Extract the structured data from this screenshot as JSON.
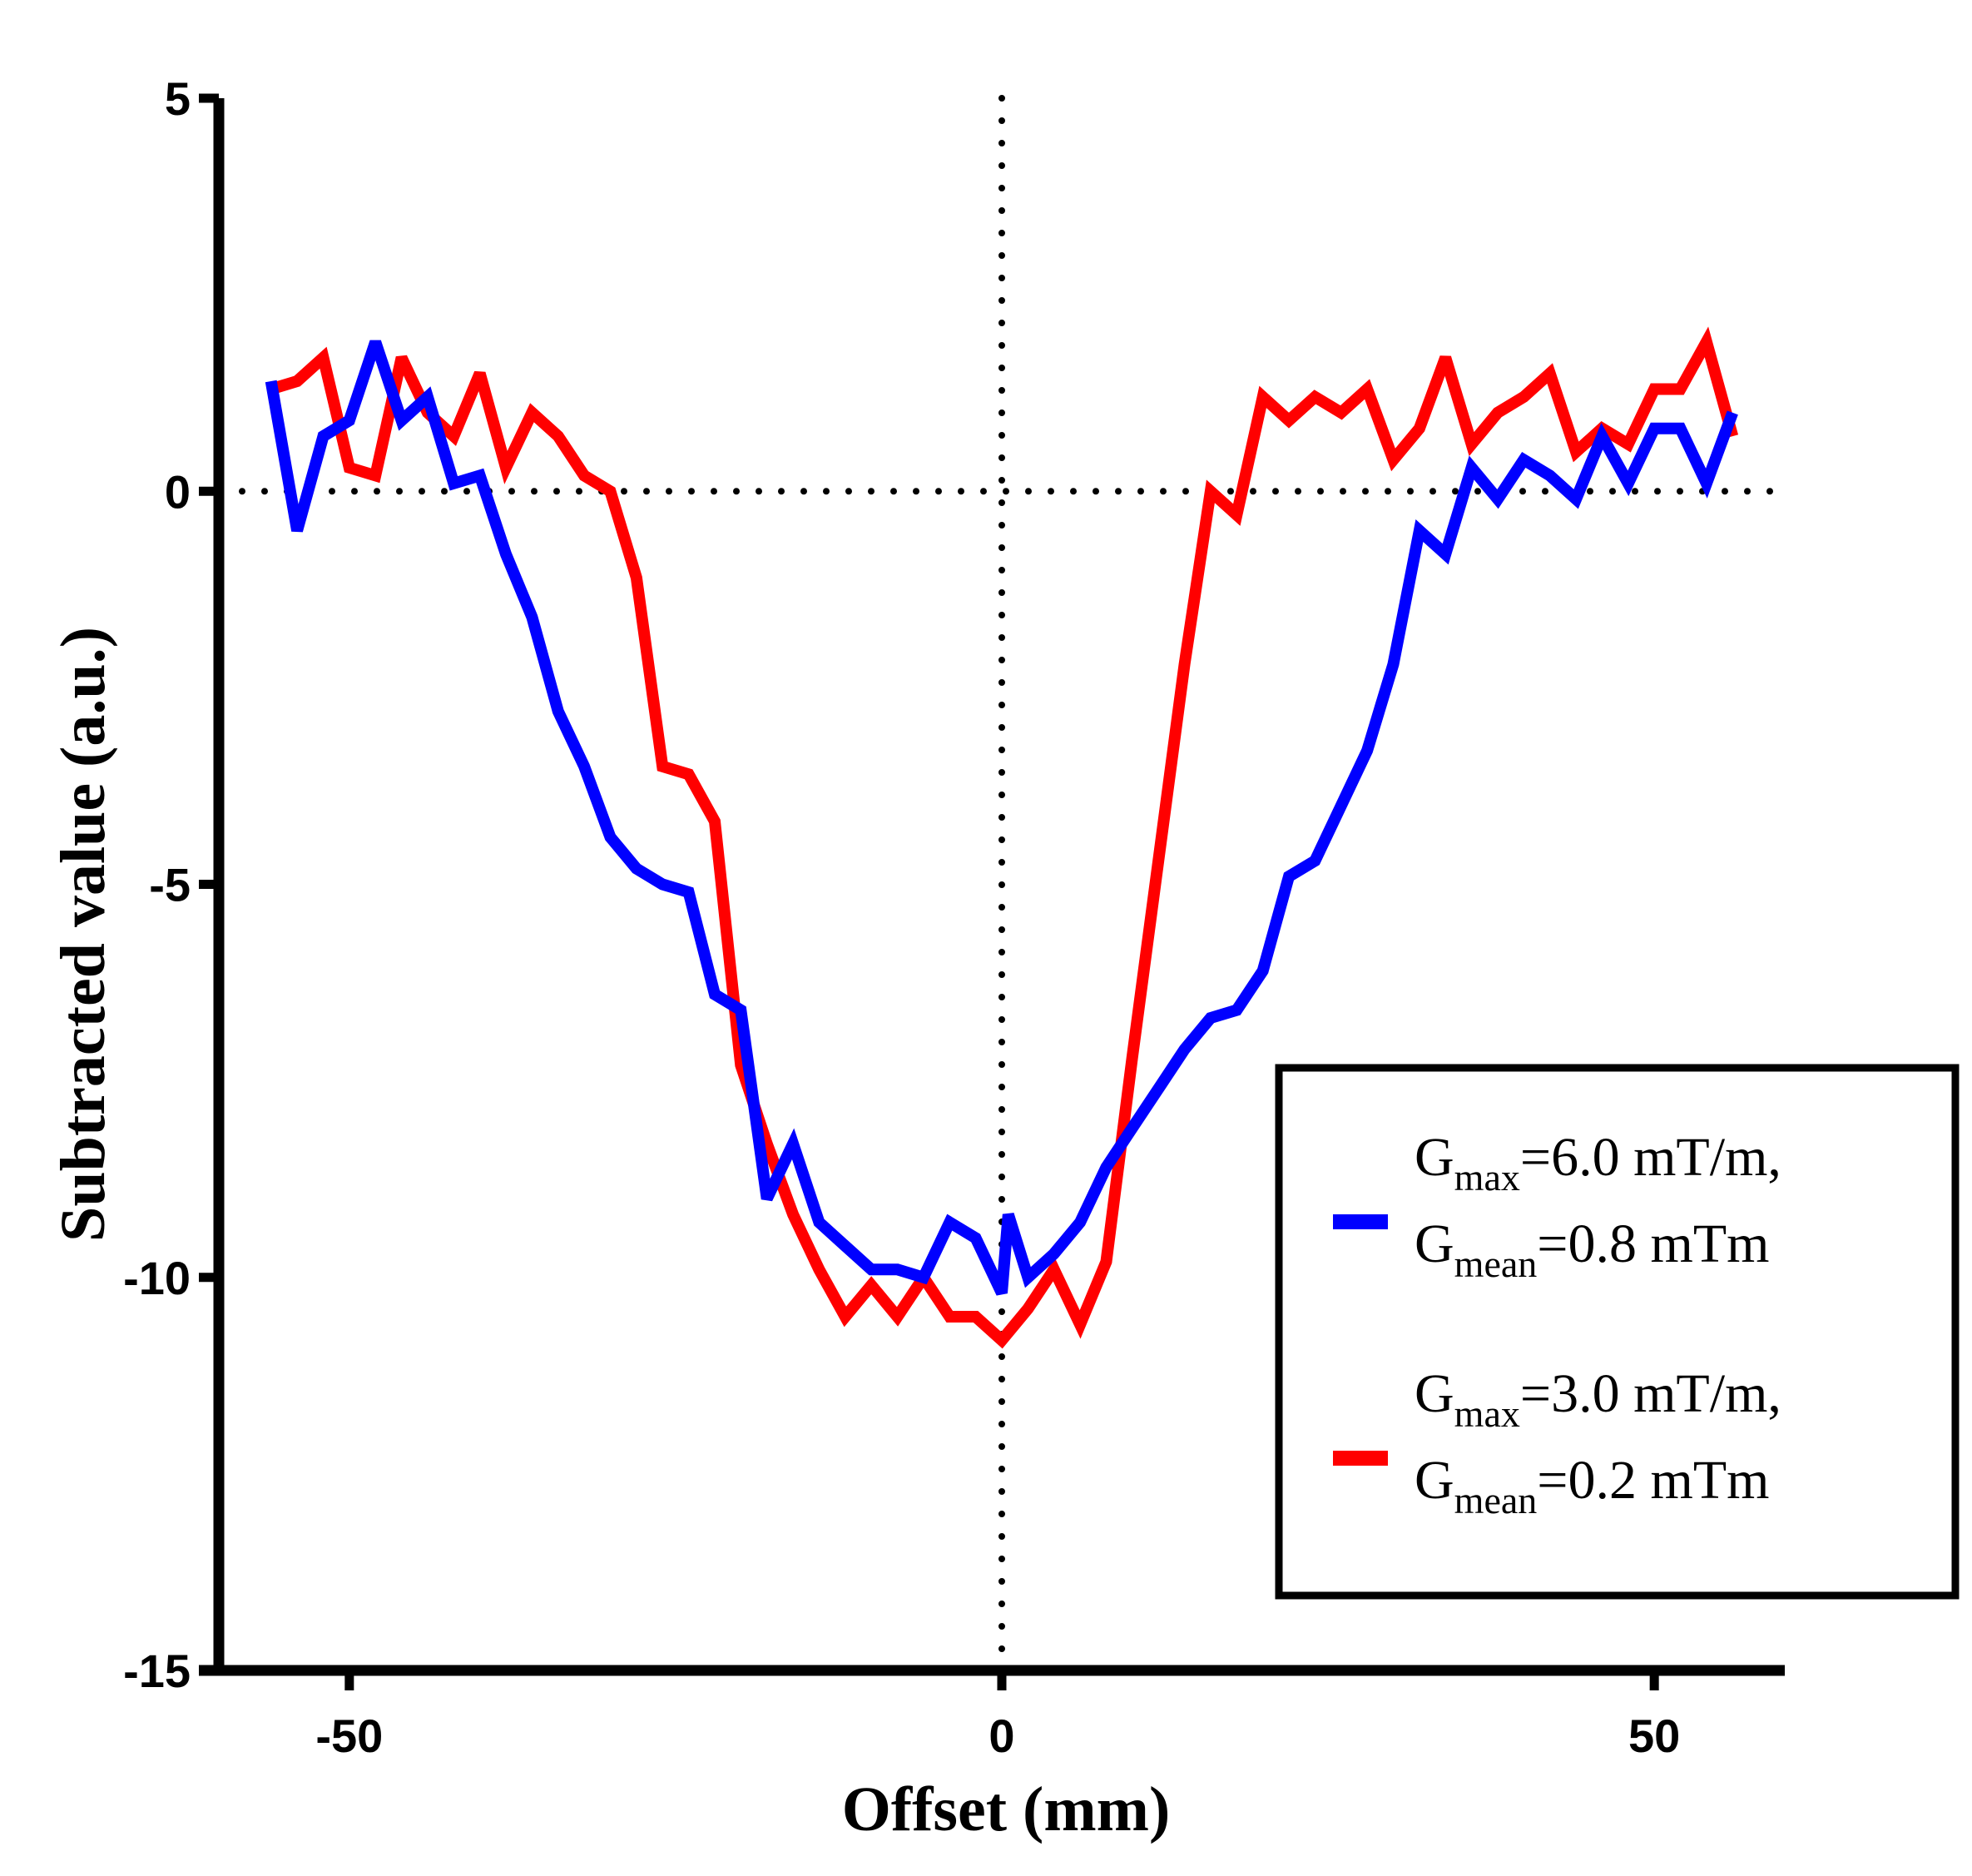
{
  "chart_data": {
    "type": "line",
    "title": "",
    "xlabel": "Offset (mm)",
    "ylabel": "Subtracted value (a.u.)",
    "xlim": [
      -60,
      60
    ],
    "ylim": [
      -15,
      5
    ],
    "xticks": [
      -50,
      0,
      50
    ],
    "xtick_labels": [
      "-50",
      "0",
      "50"
    ],
    "yticks": [
      5,
      0,
      -5,
      -10,
      -15
    ],
    "ytick_labels": [
      "5",
      "0",
      "-5",
      "-10",
      "-15"
    ],
    "reference_lines": [
      {
        "axis": "y",
        "value": 0,
        "style": "dotted"
      },
      {
        "axis": "x",
        "value": 0,
        "style": "dotted"
      }
    ],
    "grid": false,
    "legend_position": "bottom-right",
    "series": [
      {
        "name": "Gmax=6.0 mT/m, Gmean=0.8 mTm",
        "legend": {
          "line1_base": "G",
          "line1_sub": "max",
          "line1_rest": "=6.0 mT/m,",
          "line2_base": "G",
          "line2_sub": "mean",
          "line2_rest": "=0.8 mTm"
        },
        "color": "#0000ff",
        "points": [
          [
            -56,
            1.4
          ],
          [
            -54,
            -0.5
          ],
          [
            -52,
            0.7
          ],
          [
            -50,
            0.9
          ],
          [
            -48,
            1.9
          ],
          [
            -46,
            0.9
          ],
          [
            -44,
            1.2
          ],
          [
            -42,
            0.1
          ],
          [
            -40,
            0.2
          ],
          [
            -38,
            -0.8
          ],
          [
            -36,
            -1.6
          ],
          [
            -34,
            -2.8
          ],
          [
            -32,
            -3.5
          ],
          [
            -30,
            -4.4
          ],
          [
            -28,
            -4.8
          ],
          [
            -26,
            -5.0
          ],
          [
            -24,
            -5.1
          ],
          [
            -22,
            -6.4
          ],
          [
            -20,
            -6.6
          ],
          [
            -18,
            -9.0
          ],
          [
            -16,
            -8.3
          ],
          [
            -14,
            -9.3
          ],
          [
            -12,
            -9.6
          ],
          [
            -10,
            -9.9
          ],
          [
            -8,
            -9.9
          ],
          [
            -6,
            -10.0
          ],
          [
            -4,
            -9.3
          ],
          [
            -2,
            -9.5
          ],
          [
            0,
            -10.2
          ],
          [
            0.5,
            -9.2
          ],
          [
            2,
            -10.0
          ],
          [
            4,
            -9.7
          ],
          [
            6,
            -9.3
          ],
          [
            8,
            -8.6
          ],
          [
            10,
            -8.1
          ],
          [
            12,
            -7.6
          ],
          [
            14,
            -7.1
          ],
          [
            16,
            -6.7
          ],
          [
            18,
            -6.6
          ],
          [
            20,
            -6.1
          ],
          [
            22,
            -4.9
          ],
          [
            24,
            -4.7
          ],
          [
            26,
            -4.0
          ],
          [
            28,
            -3.3
          ],
          [
            30,
            -2.2
          ],
          [
            32,
            -0.5
          ],
          [
            34,
            -0.8
          ],
          [
            36,
            0.3
          ],
          [
            38,
            -0.1
          ],
          [
            40,
            0.4
          ],
          [
            42,
            0.2
          ],
          [
            44,
            -0.1
          ],
          [
            46,
            0.7
          ],
          [
            48,
            0.1
          ],
          [
            50,
            0.8
          ],
          [
            52,
            0.8
          ],
          [
            54,
            0.1
          ],
          [
            56,
            1.0
          ]
        ]
      },
      {
        "name": "Gmax=3.0 mT/m, Gmean=0.2 mTm",
        "legend": {
          "line1_base": "G",
          "line1_sub": "max",
          "line1_rest": "=3.0 mT/m,",
          "line2_base": "G",
          "line2_sub": "mean",
          "line2_rest": "=0.2 mTm"
        },
        "color": "#ff0000",
        "points": [
          [
            -56,
            1.3
          ],
          [
            -54,
            1.4
          ],
          [
            -52,
            1.7
          ],
          [
            -50,
            0.3
          ],
          [
            -48,
            0.2
          ],
          [
            -46,
            1.7
          ],
          [
            -44,
            1.0
          ],
          [
            -42,
            0.7
          ],
          [
            -40,
            1.5
          ],
          [
            -38,
            0.3
          ],
          [
            -36,
            1.0
          ],
          [
            -34,
            0.7
          ],
          [
            -32,
            0.2
          ],
          [
            -30,
            0.0
          ],
          [
            -28,
            -1.1
          ],
          [
            -26,
            -3.5
          ],
          [
            -24,
            -3.6
          ],
          [
            -22,
            -4.2
          ],
          [
            -20,
            -7.3
          ],
          [
            -18,
            -8.3
          ],
          [
            -16,
            -9.2
          ],
          [
            -14,
            -9.9
          ],
          [
            -12,
            -10.5
          ],
          [
            -10,
            -10.1
          ],
          [
            -8,
            -10.5
          ],
          [
            -6,
            -10.0
          ],
          [
            -4,
            -10.5
          ],
          [
            -2,
            -10.5
          ],
          [
            0,
            -10.8
          ],
          [
            2,
            -10.4
          ],
          [
            4,
            -9.9
          ],
          [
            6,
            -10.6
          ],
          [
            8,
            -9.8
          ],
          [
            10,
            -7.2
          ],
          [
            12,
            -4.7
          ],
          [
            14,
            -2.2
          ],
          [
            16,
            0.0
          ],
          [
            18,
            -0.3
          ],
          [
            20,
            1.2
          ],
          [
            22,
            0.9
          ],
          [
            24,
            1.2
          ],
          [
            26,
            1.0
          ],
          [
            28,
            1.3
          ],
          [
            30,
            0.4
          ],
          [
            32,
            0.8
          ],
          [
            34,
            1.7
          ],
          [
            36,
            0.6
          ],
          [
            38,
            1.0
          ],
          [
            40,
            1.2
          ],
          [
            42,
            1.5
          ],
          [
            44,
            0.5
          ],
          [
            46,
            0.8
          ],
          [
            48,
            0.6
          ],
          [
            50,
            1.3
          ],
          [
            52,
            1.3
          ],
          [
            54,
            1.9
          ],
          [
            56,
            0.7
          ]
        ]
      }
    ]
  }
}
